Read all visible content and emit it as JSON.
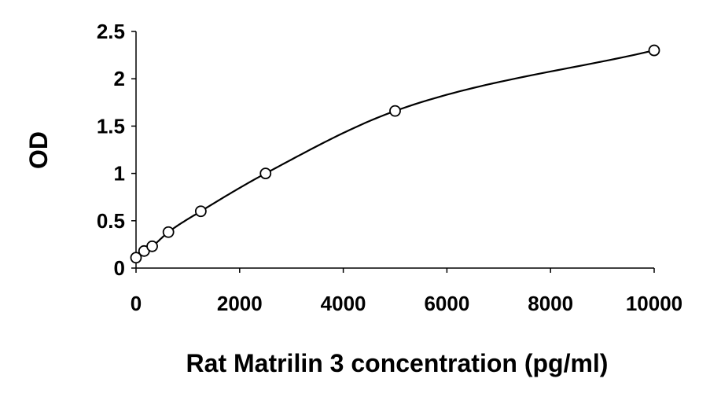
{
  "chart_data": {
    "type": "scatter",
    "title": "",
    "xlabel": "Rat Matrilin 3 concentration (pg/ml)",
    "ylabel": "OD",
    "xlim": [
      0,
      10000
    ],
    "ylim": [
      0,
      2.5
    ],
    "x_ticks": [
      0,
      2000,
      4000,
      6000,
      8000,
      10000
    ],
    "x_tick_labels": [
      "0",
      "2000",
      "4000",
      "6000",
      "8000",
      "10000"
    ],
    "y_ticks": [
      0,
      0.5,
      1,
      1.5,
      2,
      2.5
    ],
    "y_tick_labels": [
      "0",
      "0.5",
      "1",
      "1.5",
      "2",
      "2.5"
    ],
    "grid": false,
    "legend": "none",
    "trendline": "smooth fitted curve through points",
    "series": [
      {
        "marker": "open-circle",
        "x": [
          0,
          156,
          312,
          625,
          1250,
          2500,
          5000,
          10000
        ],
        "y": [
          0.11,
          0.18,
          0.23,
          0.38,
          0.6,
          1.0,
          1.66,
          2.3
        ]
      }
    ]
  }
}
